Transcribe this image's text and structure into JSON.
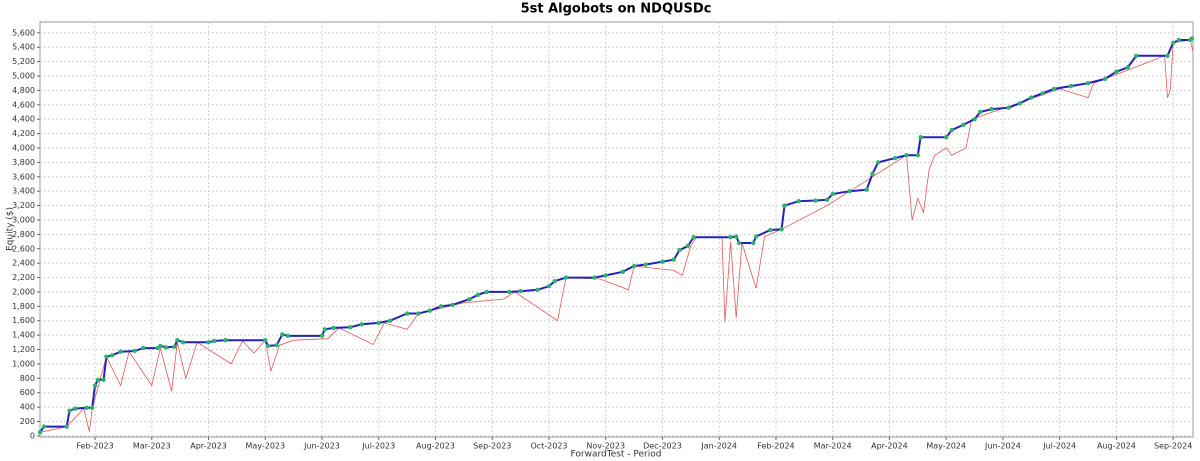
{
  "chart_data": {
    "type": "line",
    "title": "5st Algobots on NDQUSDc",
    "y_label": "Equity ($)",
    "x_label": "ForwardTest - Period",
    "grid": true,
    "xlim": [
      0.03,
      20.35
    ],
    "ylim": [
      -15,
      5750
    ],
    "xticks": [
      {
        "value": 1,
        "label": "Feb-2023"
      },
      {
        "value": 2,
        "label": "Mar-2023"
      },
      {
        "value": 3,
        "label": "Apr-2023"
      },
      {
        "value": 4,
        "label": "May-2023"
      },
      {
        "value": 5,
        "label": "Jun-2023"
      },
      {
        "value": 6,
        "label": "Jul-2023"
      },
      {
        "value": 7,
        "label": "Aug-2023"
      },
      {
        "value": 8,
        "label": "Sep-2023"
      },
      {
        "value": 9,
        "label": "Oct-2023"
      },
      {
        "value": 10,
        "label": "Nov-2023"
      },
      {
        "value": 11,
        "label": "Dec-2023"
      },
      {
        "value": 12,
        "label": "Jan-2024"
      },
      {
        "value": 13,
        "label": "Feb-2024"
      },
      {
        "value": 14,
        "label": "Mar-2024"
      },
      {
        "value": 15,
        "label": "Apr-2024"
      },
      {
        "value": 16,
        "label": "May-2024"
      },
      {
        "value": 17,
        "label": "Jun-2024"
      },
      {
        "value": 18,
        "label": "Jul-2024"
      },
      {
        "value": 19,
        "label": "Aug-2024"
      },
      {
        "value": 20,
        "label": "Sep-2024"
      }
    ],
    "yticks": [
      0,
      200,
      400,
      600,
      800,
      {
        "value": 1000,
        "label": "1,000"
      },
      {
        "value": 1200,
        "label": "1,200"
      },
      {
        "value": 1400,
        "label": "1,400"
      },
      {
        "value": 1600,
        "label": "1,600"
      },
      {
        "value": 1800,
        "label": "1,800"
      },
      {
        "value": 2000,
        "label": "2,000"
      },
      {
        "value": 2200,
        "label": "2,200"
      },
      {
        "value": 2400,
        "label": "2,400"
      },
      {
        "value": 2600,
        "label": "2,600"
      },
      {
        "value": 2800,
        "label": "2,800"
      },
      {
        "value": 3000,
        "label": "3,000"
      },
      {
        "value": 3200,
        "label": "3,200"
      },
      {
        "value": 3400,
        "label": "3,400"
      },
      {
        "value": 3600,
        "label": "3,600"
      },
      {
        "value": 3800,
        "label": "3,800"
      },
      {
        "value": 4000,
        "label": "4,000"
      },
      {
        "value": 4200,
        "label": "4,200"
      },
      {
        "value": 4400,
        "label": "4,400"
      },
      {
        "value": 4600,
        "label": "4,600"
      },
      {
        "value": 4800,
        "label": "4,800"
      },
      {
        "value": 5000,
        "label": "5,000"
      },
      {
        "value": 5200,
        "label": "5,200"
      },
      {
        "value": 5400,
        "label": "5,400"
      },
      {
        "value": 5600,
        "label": "5,600"
      }
    ],
    "series": [
      {
        "color": "#e05a5a",
        "width": 0.8,
        "x": [
          0.03,
          0.5,
          0.8,
          0.9,
          0.95,
          1.2,
          1.45,
          1.6,
          2.0,
          2.15,
          2.35,
          2.45,
          2.6,
          2.8,
          3.4,
          3.6,
          3.8,
          4.0,
          4.1,
          4.25,
          4.5,
          5.1,
          5.3,
          5.9,
          6.1,
          6.5,
          6.7,
          7.5,
          8.2,
          8.4,
          9.15,
          9.3,
          9.9,
          10.4,
          10.5,
          11.2,
          11.35,
          11.5,
          11.6,
          12.05,
          12.1,
          12.2,
          12.3,
          12.4,
          12.65,
          12.8,
          13.1,
          13.9,
          14.3,
          15.3,
          15.4,
          15.5,
          15.6,
          15.7,
          15.8,
          16.0,
          16.1,
          16.35,
          16.45,
          18.0,
          18.5,
          18.6,
          19.85,
          19.9,
          19.95,
          20.0,
          20.3,
          20.35
        ],
        "values": [
          50,
          130,
          380,
          60,
          380,
          1100,
          700,
          1170,
          700,
          1220,
          620,
          1300,
          800,
          1300,
          1000,
          1320,
          1150,
          1330,
          900,
          1260,
          1330,
          1350,
          1500,
          1270,
          1570,
          1480,
          1700,
          1850,
          1900,
          2000,
          1600,
          2200,
          2180,
          2030,
          2360,
          2300,
          2230,
          2640,
          2760,
          2760,
          1580,
          2700,
          1640,
          2680,
          2050,
          2770,
          2870,
          3200,
          3400,
          3900,
          3000,
          3300,
          3100,
          3700,
          3900,
          4000,
          3900,
          4000,
          4400,
          4820,
          4700,
          4900,
          5280,
          4700,
          4800,
          5460,
          5500,
          5340
        ]
      },
      {
        "color": "#2222bb",
        "width": 2,
        "marker_color": "#2db36b",
        "x": [
          0.03,
          0.1,
          0.5,
          0.55,
          0.65,
          0.85,
          0.95,
          1.0,
          1.05,
          1.15,
          1.2,
          1.3,
          1.45,
          1.7,
          1.85,
          2.1,
          2.15,
          2.25,
          2.4,
          2.45,
          2.55,
          3.0,
          3.1,
          3.3,
          4.0,
          4.05,
          4.2,
          4.3,
          4.4,
          5.0,
          5.05,
          5.2,
          5.5,
          5.7,
          6.0,
          6.2,
          6.5,
          6.7,
          6.9,
          7.1,
          7.3,
          7.6,
          7.75,
          7.9,
          8.3,
          8.5,
          8.8,
          9.0,
          9.1,
          9.3,
          9.8,
          10.0,
          10.3,
          10.5,
          10.7,
          11.0,
          11.2,
          11.3,
          11.45,
          11.55,
          12.2,
          12.3,
          12.35,
          12.6,
          12.65,
          12.9,
          13.1,
          13.15,
          13.4,
          13.7,
          13.9,
          14.0,
          14.3,
          14.6,
          14.7,
          14.8,
          15.1,
          15.3,
          15.5,
          15.55,
          16.0,
          16.1,
          16.3,
          16.5,
          16.6,
          16.8,
          17.1,
          17.3,
          17.5,
          17.7,
          17.9,
          18.2,
          18.5,
          18.8,
          19.0,
          19.2,
          19.35,
          19.9,
          20.0,
          20.1,
          20.3,
          20.33
        ],
        "values": [
          50,
          130,
          130,
          350,
          380,
          390,
          390,
          700,
          780,
          780,
          1100,
          1120,
          1170,
          1180,
          1220,
          1220,
          1250,
          1230,
          1240,
          1330,
          1300,
          1300,
          1320,
          1330,
          1330,
          1250,
          1260,
          1410,
          1390,
          1390,
          1480,
          1500,
          1510,
          1550,
          1570,
          1600,
          1700,
          1700,
          1740,
          1800,
          1820,
          1900,
          1960,
          2000,
          2000,
          2010,
          2030,
          2080,
          2150,
          2200,
          2200,
          2230,
          2280,
          2360,
          2380,
          2420,
          2450,
          2580,
          2640,
          2760,
          2760,
          2770,
          2680,
          2680,
          2770,
          2860,
          2870,
          3200,
          3260,
          3270,
          3280,
          3360,
          3400,
          3420,
          3640,
          3800,
          3860,
          3900,
          3900,
          4150,
          4150,
          4250,
          4320,
          4400,
          4500,
          4540,
          4560,
          4620,
          4700,
          4760,
          4820,
          4860,
          4900,
          4960,
          5060,
          5120,
          5280,
          5280,
          5460,
          5500,
          5500,
          5520
        ]
      }
    ]
  }
}
